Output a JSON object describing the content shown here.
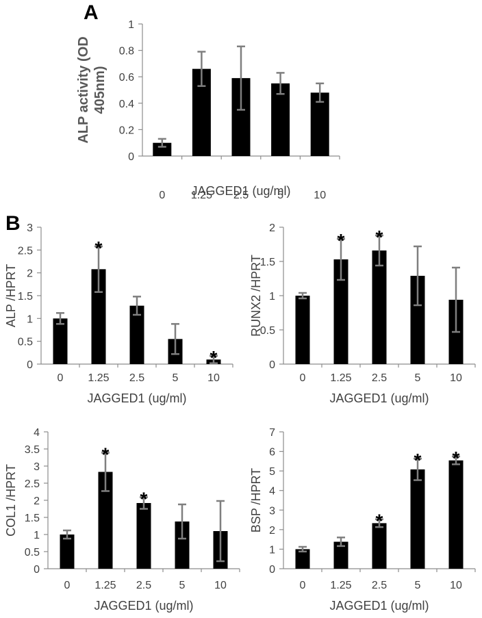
{
  "panel_labels": {
    "a": "A",
    "b": "B"
  },
  "chart_data": [
    {
      "type": "bar",
      "categories": [
        "0",
        "1.25",
        "2.5",
        "5",
        "10"
      ],
      "values": [
        0.1,
        0.66,
        0.59,
        0.55,
        0.48
      ],
      "error": [
        0.03,
        0.13,
        0.24,
        0.08,
        0.07
      ],
      "significant": [
        false,
        false,
        false,
        false,
        false
      ],
      "xlabel": "JAGGED1 (ug/ml)",
      "ylabel": [
        "ALP activity (OD",
        "405nm)"
      ],
      "ylim": [
        0,
        1
      ],
      "yticks": [
        "0",
        "0.2",
        "0.4",
        "0.6",
        "0.8",
        "1"
      ],
      "star": "*"
    },
    {
      "type": "bar",
      "categories": [
        "0",
        "1.25",
        "2.5",
        "5",
        "10"
      ],
      "values": [
        1.0,
        2.08,
        1.28,
        0.55,
        0.1
      ],
      "error": [
        0.12,
        0.5,
        0.2,
        0.33,
        0.08
      ],
      "significant": [
        false,
        true,
        false,
        false,
        true
      ],
      "xlabel": "JAGGED1 (ug/ml)",
      "ylabel": [
        "ALP /HPRT"
      ],
      "ylim": [
        0,
        3
      ],
      "yticks": [
        "0",
        "0.5",
        "1",
        "1.5",
        "2",
        "2.5",
        "3"
      ],
      "star": "*"
    },
    {
      "type": "bar",
      "categories": [
        "0",
        "1.25",
        "2.5",
        "5",
        "10"
      ],
      "values": [
        1.0,
        1.53,
        1.66,
        1.29,
        0.94
      ],
      "error": [
        0.04,
        0.3,
        0.22,
        0.43,
        0.47
      ],
      "significant": [
        false,
        true,
        true,
        false,
        false
      ],
      "xlabel": "JAGGED1 (ug/ml)",
      "ylabel": [
        "RUNX2 /HPRT"
      ],
      "ylim": [
        0,
        2
      ],
      "yticks": [
        "0",
        "0.5",
        "1",
        "1.5",
        "2"
      ],
      "star": "*"
    },
    {
      "type": "bar",
      "categories": [
        "0",
        "1.25",
        "2.5",
        "5",
        "10"
      ],
      "values": [
        1.0,
        2.83,
        1.92,
        1.38,
        1.1
      ],
      "error": [
        0.12,
        0.56,
        0.17,
        0.5,
        0.88
      ],
      "significant": [
        false,
        true,
        true,
        false,
        false
      ],
      "xlabel": "JAGGED1 (ug/ml)",
      "ylabel": [
        "COL1 /HPRT"
      ],
      "ylim": [
        0,
        4
      ],
      "yticks": [
        "0",
        "0.5",
        "1",
        "1.5",
        "2",
        "2.5",
        "3",
        "3.5",
        "4"
      ],
      "star": "*"
    },
    {
      "type": "bar",
      "categories": [
        "0",
        "1.25",
        "2.5",
        "5",
        "10"
      ],
      "values": [
        1.0,
        1.38,
        2.33,
        5.08,
        5.54
      ],
      "error": [
        0.12,
        0.22,
        0.2,
        0.55,
        0.2
      ],
      "significant": [
        false,
        false,
        true,
        true,
        true
      ],
      "xlabel": "JAGGED1 (ug/ml)",
      "ylabel": [
        "BSP /HPRT"
      ],
      "ylim": [
        0,
        7
      ],
      "yticks": [
        "0",
        "1",
        "2",
        "3",
        "4",
        "5",
        "6",
        "7"
      ],
      "star": "*"
    }
  ]
}
